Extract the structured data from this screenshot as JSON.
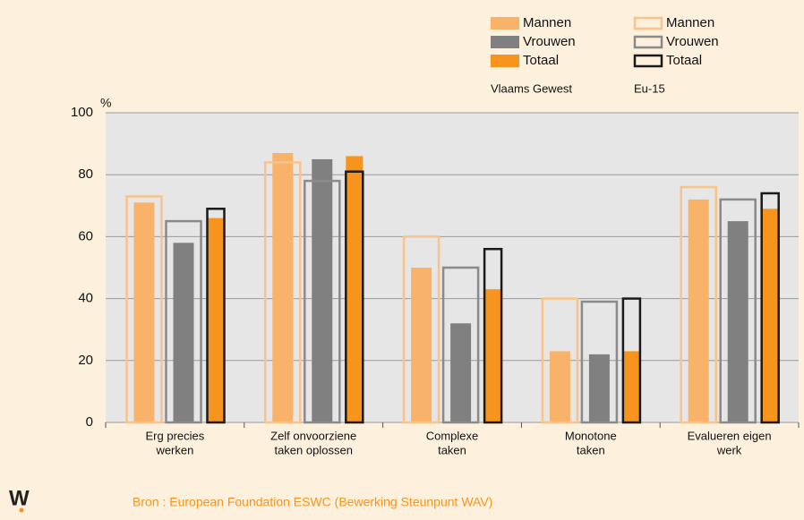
{
  "chart_data": {
    "type": "bar",
    "y_label": "%",
    "categories": [
      [
        "Erg precies",
        "werken"
      ],
      [
        "Zelf onvoorziene",
        "taken oplossen"
      ],
      [
        "Complexe",
        "taken"
      ],
      [
        "Monotone",
        "taken"
      ],
      [
        "Evalueren eigen",
        "werk"
      ]
    ],
    "legend_groups": [
      "Vlaams Gewest",
      "Eu-15"
    ],
    "series": [
      {
        "name": "Mannen",
        "color": "#f9b26a",
        "style": "filled",
        "group": 0,
        "values": [
          71,
          87,
          50,
          23,
          72
        ]
      },
      {
        "name": "Vrouwen",
        "color": "#808080",
        "style": "filled",
        "group": 0,
        "values": [
          58,
          85,
          32,
          22,
          65
        ]
      },
      {
        "name": "Totaal",
        "color": "#f7941d",
        "style": "filled",
        "group": 0,
        "values": [
          66,
          86,
          43,
          23,
          69
        ]
      },
      {
        "name": "Mannen",
        "color": "#f9c38a",
        "style": "outline",
        "group": 1,
        "values": [
          73,
          84,
          60,
          40,
          76
        ]
      },
      {
        "name": "Vrouwen",
        "color": "#8a8a8a",
        "style": "outline",
        "group": 1,
        "values": [
          65,
          78,
          50,
          39,
          72
        ]
      },
      {
        "name": "Totaal",
        "color": "#1a1a1a",
        "style": "outline",
        "group": 1,
        "values": [
          69,
          81,
          56,
          40,
          74
        ]
      }
    ],
    "ylim": [
      0,
      100
    ],
    "yticks": [
      0,
      20,
      40,
      60,
      80,
      100
    ],
    "grid": true,
    "source": "Bron : European Foundation ESWC (Bewerking Steunpunt WAV)",
    "logo": "W"
  }
}
